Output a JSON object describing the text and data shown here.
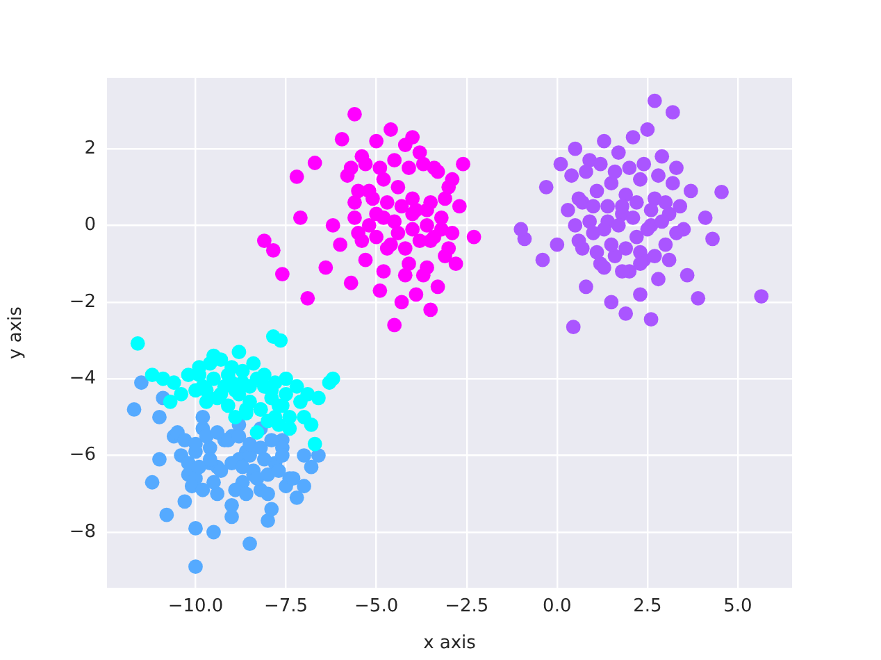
{
  "chart_data": {
    "type": "scatter",
    "xlabel": "x axis",
    "ylabel": "y axis",
    "xlim": [
      -12.45,
      6.5
    ],
    "ylim": [
      -9.45,
      3.85
    ],
    "xticks": [
      {
        "value": -10,
        "label": "−10.0"
      },
      {
        "value": -7.5,
        "label": "−7.5"
      },
      {
        "value": -5,
        "label": "−5.0"
      },
      {
        "value": -2.5,
        "label": "−2.5"
      },
      {
        "value": 0,
        "label": "0.0"
      },
      {
        "value": 2.5,
        "label": "2.5"
      },
      {
        "value": 5,
        "label": "5.0"
      }
    ],
    "yticks": [
      {
        "value": -8,
        "label": "−8"
      },
      {
        "value": -6,
        "label": "−6"
      },
      {
        "value": -4,
        "label": "−4"
      },
      {
        "value": -2,
        "label": "−2"
      },
      0,
      2
    ],
    "grid": true,
    "legend": false,
    "marker": "circle",
    "series": [
      {
        "color": "#00ffff",
        "x": [
          -11.6,
          -7.85,
          -7.65,
          -10.9,
          -10.6,
          -10.2,
          -9.9,
          -9.6,
          -9.3,
          -9.0,
          -8.7,
          -8.4,
          -8.1,
          -7.8,
          -7.5,
          -7.2,
          -6.9,
          -6.6,
          -6.3,
          -6.2,
          -10.4,
          -10.0,
          -9.7,
          -9.4,
          -9.1,
          -8.8,
          -8.5,
          -8.2,
          -7.9,
          -7.6,
          -7.0,
          -6.8,
          -9.8,
          -9.2,
          -8.6,
          -8.0,
          -7.4,
          -8.9,
          -8.3,
          -7.7,
          -6.7,
          -11.2,
          -10.7,
          -9.5,
          -8.8,
          -9.9,
          -9.5,
          -9.1,
          -8.7,
          -8.3,
          -7.9,
          -7.5,
          -7.1,
          -9.7,
          -9.3,
          -8.9,
          -8.5,
          -8.1,
          -7.7,
          -9.0,
          -8.6,
          -8.2,
          -7.8,
          -7.4
        ],
        "values": [
          -3.08,
          -2.9,
          -3.0,
          -4.0,
          -4.1,
          -3.9,
          -3.7,
          -3.6,
          -3.5,
          -3.7,
          -3.8,
          -3.6,
          -3.9,
          -4.1,
          -4.0,
          -4.2,
          -4.4,
          -4.5,
          -4.1,
          -4.0,
          -4.4,
          -4.3,
          -4.6,
          -4.5,
          -4.7,
          -4.4,
          -4.6,
          -4.8,
          -4.5,
          -4.7,
          -5.0,
          -5.2,
          -4.2,
          -4.2,
          -4.9,
          -5.1,
          -5.3,
          -5.0,
          -5.4,
          -5.2,
          -5.7,
          -3.9,
          -4.6,
          -3.4,
          -3.3,
          -3.9,
          -4.0,
          -3.9,
          -4.1,
          -4.0,
          -4.3,
          -4.4,
          -4.6,
          -4.3,
          -4.4,
          -4.3,
          -4.2,
          -4.2,
          -4.7,
          -4.1,
          -4.8,
          -4.8,
          -5.0,
          -5.0
        ]
      },
      {
        "color": "#55aaff",
        "x": [
          -11.7,
          -11.5,
          -11.2,
          -11.0,
          -10.8,
          -10.6,
          -10.4,
          -10.2,
          -10.0,
          -9.8,
          -9.6,
          -9.4,
          -9.0,
          -8.8,
          -8.6,
          -8.4,
          -8.2,
          -8.0,
          -7.8,
          -7.6,
          -7.4,
          -7.2,
          -7.0,
          -6.8,
          -6.6,
          -11.0,
          -10.5,
          -10.0,
          -9.5,
          -9.0,
          -8.5,
          -8.0,
          -7.5,
          -10.9,
          -10.0,
          -9.6,
          -9.2,
          -8.8,
          -7.6,
          -10.0,
          -9.4,
          -8.5,
          -9.8,
          -9.0,
          -8.2,
          -10.3,
          -8.7,
          -7.9,
          -10.3,
          -10.0,
          -9.7,
          -9.4,
          -9.1,
          -8.8,
          -8.5,
          -8.2,
          -7.9,
          -7.6,
          -10.2,
          -9.9,
          -9.6,
          -9.3,
          -9.0,
          -8.7,
          -8.4,
          -8.1,
          -10.1,
          -9.8,
          -9.5,
          -8.9,
          -8.6,
          -8.3,
          -8.0,
          -7.7,
          -7.3,
          -7.0
        ],
        "values": [
          -4.8,
          -4.1,
          -6.7,
          -5.0,
          -7.55,
          -5.5,
          -6.0,
          -6.5,
          -8.9,
          -5.3,
          -5.8,
          -6.3,
          -7.3,
          -5.2,
          -5.9,
          -6.4,
          -6.9,
          -7.0,
          -6.2,
          -5.6,
          -6.6,
          -7.1,
          -6.0,
          -6.3,
          -6.0,
          -6.1,
          -5.4,
          -7.9,
          -8.0,
          -7.6,
          -8.3,
          -7.7,
          -6.8,
          -4.5,
          -5.9,
          -6.2,
          -5.6,
          -6.1,
          -5.8,
          -6.6,
          -7.0,
          -6.0,
          -5.0,
          -5.5,
          -5.3,
          -7.2,
          -6.7,
          -7.4,
          -5.6,
          -5.7,
          -5.5,
          -5.4,
          -5.6,
          -5.5,
          -5.7,
          -5.8,
          -5.6,
          -6.0,
          -6.2,
          -6.3,
          -6.1,
          -6.4,
          -6.2,
          -6.3,
          -6.5,
          -6.1,
          -6.8,
          -6.9,
          -6.7,
          -6.9,
          -7.0,
          -6.6,
          -6.5,
          -6.4,
          -6.6,
          -6.8
        ]
      },
      {
        "color": "#aa55ff",
        "x": [
          5.65,
          4.55,
          4.3,
          0.45,
          -0.9,
          -1.0,
          2.7,
          3.2,
          3.9,
          -0.3,
          0.1,
          0.5,
          0.9,
          1.3,
          1.7,
          2.1,
          2.5,
          2.9,
          3.3,
          3.7,
          0.3,
          0.7,
          1.1,
          1.5,
          1.9,
          2.3,
          2.7,
          3.1,
          3.5,
          0.6,
          1.0,
          1.4,
          1.8,
          2.2,
          2.6,
          3.0,
          1.2,
          1.6,
          2.0,
          2.4,
          2.8,
          0.8,
          1.5,
          2.3,
          3.6,
          4.1,
          -0.4,
          0.0,
          1.9,
          2.6,
          0.4,
          0.8,
          1.2,
          1.6,
          2.0,
          2.4,
          2.8,
          3.2,
          0.6,
          1.0,
          1.4,
          1.8,
          2.2,
          2.6,
          3.0,
          3.4,
          0.5,
          0.9,
          1.3,
          1.7,
          2.1,
          2.5,
          2.9,
          3.3,
          0.7,
          1.1,
          1.5,
          1.9,
          2.3,
          2.7,
          3.1,
          1.3,
          1.8,
          2.3
        ],
        "values": [
          -1.85,
          0.87,
          -0.35,
          -2.65,
          -0.35,
          -0.1,
          3.25,
          2.95,
          -1.9,
          1.0,
          1.6,
          2.0,
          1.7,
          2.2,
          1.9,
          2.3,
          2.5,
          1.8,
          1.5,
          0.9,
          0.4,
          0.6,
          0.9,
          1.1,
          0.8,
          1.2,
          0.7,
          0.3,
          -0.1,
          -0.4,
          -0.2,
          0.1,
          0.3,
          -0.3,
          0.0,
          -0.5,
          -1.0,
          -0.8,
          -1.2,
          -0.9,
          -1.4,
          -1.6,
          -2.0,
          -1.8,
          -1.3,
          0.2,
          -0.9,
          -0.5,
          -2.3,
          -2.45,
          1.3,
          1.4,
          1.6,
          1.4,
          1.5,
          1.6,
          1.3,
          1.1,
          0.7,
          0.5,
          0.5,
          0.5,
          0.6,
          0.4,
          0.6,
          0.5,
          0.0,
          0.1,
          -0.1,
          0.0,
          0.2,
          -0.1,
          0.1,
          -0.2,
          -0.6,
          -0.7,
          -0.5,
          -0.6,
          -0.7,
          -0.8,
          -0.9,
          -1.1,
          -1.2,
          -1.0
        ]
      },
      {
        "color": "#ff00ff",
        "x": [
          -5.6,
          -7.2,
          -6.7,
          -7.1,
          -8.1,
          -7.85,
          -7.6,
          -6.9,
          -4.5,
          -5.95,
          -2.3,
          -2.6,
          -6.2,
          -5.8,
          -5.4,
          -5.0,
          -4.6,
          -4.2,
          -3.8,
          -3.4,
          -3.0,
          -2.7,
          -5.6,
          -5.2,
          -4.8,
          -4.4,
          -4.0,
          -3.6,
          -3.2,
          -2.9,
          -6.0,
          -5.5,
          -5.0,
          -4.5,
          -4.0,
          -3.5,
          -3.1,
          -5.3,
          -4.7,
          -4.1,
          -3.7,
          -3.3,
          -4.9,
          -4.3,
          -3.9,
          -5.7,
          -3.5,
          -4.0,
          -2.8,
          -6.4,
          -5.7,
          -5.3,
          -4.9,
          -4.5,
          -4.1,
          -3.7,
          -3.3,
          -2.9,
          -5.5,
          -5.1,
          -4.7,
          -4.3,
          -3.9,
          -3.5,
          -3.1,
          -5.6,
          -5.2,
          -4.8,
          -4.4,
          -4.0,
          -3.6,
          -3.2,
          -5.4,
          -5.0,
          -4.6,
          -4.2,
          -3.8,
          -3.4,
          -3.0,
          -4.8,
          -4.2,
          -3.6
        ],
        "values": [
          2.9,
          1.27,
          1.63,
          0.2,
          -0.4,
          -0.65,
          -1.27,
          -1.9,
          -2.6,
          2.25,
          -0.3,
          1.6,
          0.0,
          1.3,
          1.8,
          2.2,
          2.5,
          2.1,
          1.9,
          1.5,
          1.0,
          0.5,
          0.6,
          0.9,
          1.2,
          1.0,
          0.7,
          0.4,
          0.2,
          -0.2,
          -0.5,
          -0.2,
          0.3,
          0.1,
          -0.1,
          -0.4,
          -0.8,
          -0.9,
          -0.6,
          -1.0,
          -1.3,
          -1.6,
          -1.7,
          -2.0,
          -1.8,
          -1.5,
          -2.2,
          2.3,
          -1.0,
          -1.1,
          1.5,
          1.6,
          1.5,
          1.7,
          1.5,
          1.6,
          1.4,
          1.2,
          0.9,
          0.7,
          0.6,
          0.5,
          0.4,
          0.6,
          0.7,
          0.2,
          0.0,
          0.2,
          -0.2,
          0.3,
          0.0,
          -0.1,
          -0.4,
          -0.3,
          -0.5,
          -0.6,
          -0.4,
          -0.3,
          -0.6,
          -1.2,
          -1.3,
          -1.1
        ]
      }
    ]
  }
}
